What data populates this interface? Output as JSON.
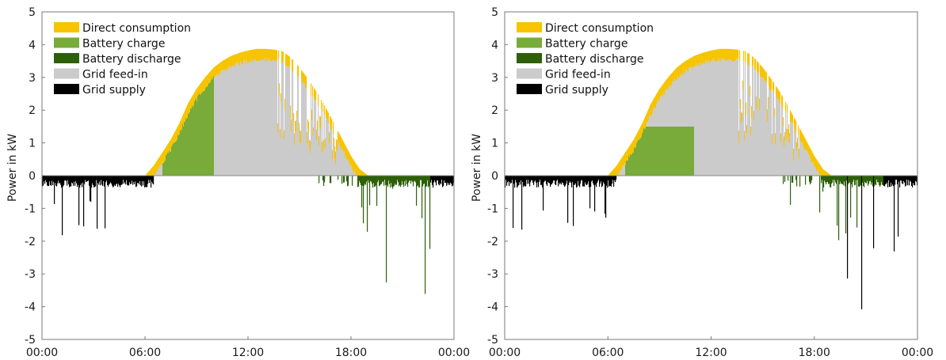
{
  "colors": {
    "direct": "#f7c400",
    "charge": "#78ab3a",
    "discharge": "#2d6008",
    "feedin": "#cbcbcb",
    "supply": "#000000"
  },
  "chart_data": [
    {
      "type": "area",
      "ylabel": "Power in kW",
      "ylim": [
        -5,
        5
      ],
      "xlim": [
        0,
        24
      ],
      "x_unit": "hours",
      "y_ticks": [
        "5",
        "4",
        "3",
        "2",
        "1",
        "0",
        "-1",
        "-2",
        "-3",
        "-4",
        "-5"
      ],
      "x_ticks": [
        "00:00",
        "06:00",
        "12:00",
        "18:00",
        "00:00"
      ],
      "legend_position": "top-left",
      "series": [
        {
          "name": "Direct consumption",
          "color_key": "direct"
        },
        {
          "name": "Battery charge",
          "color_key": "charge"
        },
        {
          "name": "Battery discharge",
          "color_key": "discharge"
        },
        {
          "name": "Grid feed-in",
          "color_key": "feedin"
        },
        {
          "name": "Grid supply",
          "color_key": "supply"
        }
      ],
      "pv_total_kw": [
        {
          "x": 6.0,
          "y": 0.0
        },
        {
          "x": 6.5,
          "y": 0.3
        },
        {
          "x": 7.0,
          "y": 0.7
        },
        {
          "x": 7.5,
          "y": 1.1
        },
        {
          "x": 8.0,
          "y": 1.6
        },
        {
          "x": 8.5,
          "y": 2.2
        },
        {
          "x": 9.0,
          "y": 2.65
        },
        {
          "x": 9.5,
          "y": 3.0
        },
        {
          "x": 10.0,
          "y": 3.3
        },
        {
          "x": 10.5,
          "y": 3.5
        },
        {
          "x": 11.0,
          "y": 3.65
        },
        {
          "x": 11.5,
          "y": 3.75
        },
        {
          "x": 12.0,
          "y": 3.82
        },
        {
          "x": 12.5,
          "y": 3.87
        },
        {
          "x": 13.0,
          "y": 3.87
        },
        {
          "x": 13.5,
          "y": 3.85
        },
        {
          "x": 14.0,
          "y": 3.8
        },
        {
          "x": 14.5,
          "y": 3.6
        },
        {
          "x": 15.0,
          "y": 3.3
        },
        {
          "x": 15.5,
          "y": 2.95
        },
        {
          "x": 16.0,
          "y": 2.55
        },
        {
          "x": 16.5,
          "y": 2.1
        },
        {
          "x": 17.0,
          "y": 1.6
        },
        {
          "x": 17.5,
          "y": 1.1
        },
        {
          "x": 18.0,
          "y": 0.6
        },
        {
          "x": 18.5,
          "y": 0.2
        },
        {
          "x": 19.0,
          "y": 0.0
        }
      ],
      "battery_charge_window": {
        "start": 7.0,
        "end": 10.0,
        "limit_kw": null
      },
      "battery_discharge_window": {
        "start": 16.0,
        "end": 22.6
      },
      "grid_supply_windows": [
        {
          "start": 0.0,
          "end": 6.0
        },
        {
          "start": 22.6,
          "end": 24.0
        }
      ]
    },
    {
      "type": "area",
      "ylabel": "Power in kW",
      "ylim": [
        -5,
        5
      ],
      "xlim": [
        0,
        24
      ],
      "x_unit": "hours",
      "y_ticks": [
        "5",
        "4",
        "3",
        "2",
        "1",
        "0",
        "-1",
        "-2",
        "-3",
        "-4",
        "-5"
      ],
      "x_ticks": [
        "00:00",
        "06:00",
        "12:00",
        "18:00",
        "00:00"
      ],
      "legend_position": "top-left",
      "series": [
        {
          "name": "Direct consumption",
          "color_key": "direct"
        },
        {
          "name": "Battery charge",
          "color_key": "charge"
        },
        {
          "name": "Battery discharge",
          "color_key": "discharge"
        },
        {
          "name": "Grid feed-in",
          "color_key": "feedin"
        },
        {
          "name": "Grid supply",
          "color_key": "supply"
        }
      ],
      "pv_total_kw": [
        {
          "x": 6.0,
          "y": 0.0
        },
        {
          "x": 6.5,
          "y": 0.3
        },
        {
          "x": 7.0,
          "y": 0.7
        },
        {
          "x": 7.5,
          "y": 1.1
        },
        {
          "x": 8.0,
          "y": 1.6
        },
        {
          "x": 8.5,
          "y": 2.2
        },
        {
          "x": 9.0,
          "y": 2.65
        },
        {
          "x": 9.5,
          "y": 3.0
        },
        {
          "x": 10.0,
          "y": 3.3
        },
        {
          "x": 10.5,
          "y": 3.5
        },
        {
          "x": 11.0,
          "y": 3.65
        },
        {
          "x": 11.5,
          "y": 3.75
        },
        {
          "x": 12.0,
          "y": 3.82
        },
        {
          "x": 12.5,
          "y": 3.87
        },
        {
          "x": 13.0,
          "y": 3.87
        },
        {
          "x": 13.5,
          "y": 3.85
        },
        {
          "x": 14.0,
          "y": 3.8
        },
        {
          "x": 14.5,
          "y": 3.6
        },
        {
          "x": 15.0,
          "y": 3.3
        },
        {
          "x": 15.5,
          "y": 2.95
        },
        {
          "x": 16.0,
          "y": 2.55
        },
        {
          "x": 16.5,
          "y": 2.1
        },
        {
          "x": 17.0,
          "y": 1.6
        },
        {
          "x": 17.5,
          "y": 1.1
        },
        {
          "x": 18.0,
          "y": 0.6
        },
        {
          "x": 18.5,
          "y": 0.2
        },
        {
          "x": 19.0,
          "y": 0.0
        }
      ],
      "battery_charge_window": {
        "start": 7.0,
        "end": 11.0,
        "limit_kw": 1.5
      },
      "battery_discharge_window": {
        "start": 16.0,
        "end": 22.0
      },
      "grid_supply_windows": [
        {
          "start": 0.0,
          "end": 6.0
        },
        {
          "start": 19.5,
          "end": 22.0
        },
        {
          "start": 22.0,
          "end": 24.0
        }
      ]
    }
  ]
}
